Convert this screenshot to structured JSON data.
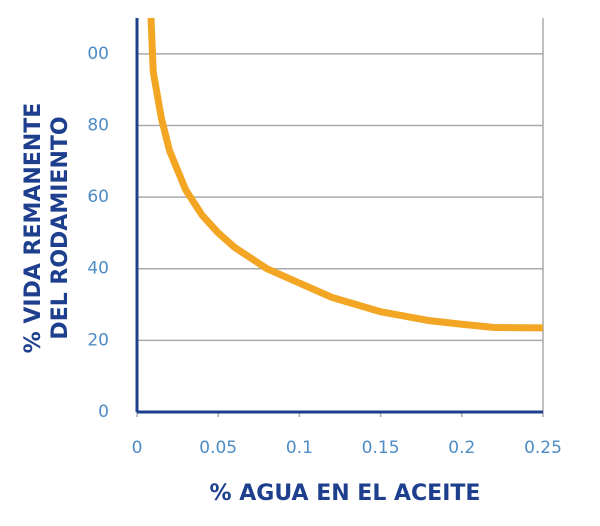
{
  "chart_data": {
    "type": "line",
    "xlabel": "% AGUA EN EL ACEITE",
    "ylabel": [
      "% VIDA REMANENTE",
      "DEL RODAMIENTO"
    ],
    "series": [
      {
        "color": "#f2a623",
        "x": [
          0.0086,
          0.01,
          0.015,
          0.02,
          0.03,
          0.04,
          0.05,
          0.06,
          0.08,
          0.1,
          0.12,
          0.15,
          0.18,
          0.2,
          0.22,
          0.25
        ],
        "values": [
          110,
          95,
          82,
          73,
          62,
          55,
          50,
          46,
          40,
          36,
          32,
          28,
          25.5,
          24.5,
          23.6,
          23.5
        ]
      }
    ],
    "xlim": [
      0,
      0.25
    ],
    "xticks": [
      0,
      0.05,
      0.1,
      0.15,
      0.2,
      0.25
    ],
    "ylim": [
      0,
      110
    ],
    "yticks": [
      0,
      20,
      40,
      60,
      80,
      {
        "value": 100,
        "label": "00"
      }
    ],
    "grid": true
  }
}
